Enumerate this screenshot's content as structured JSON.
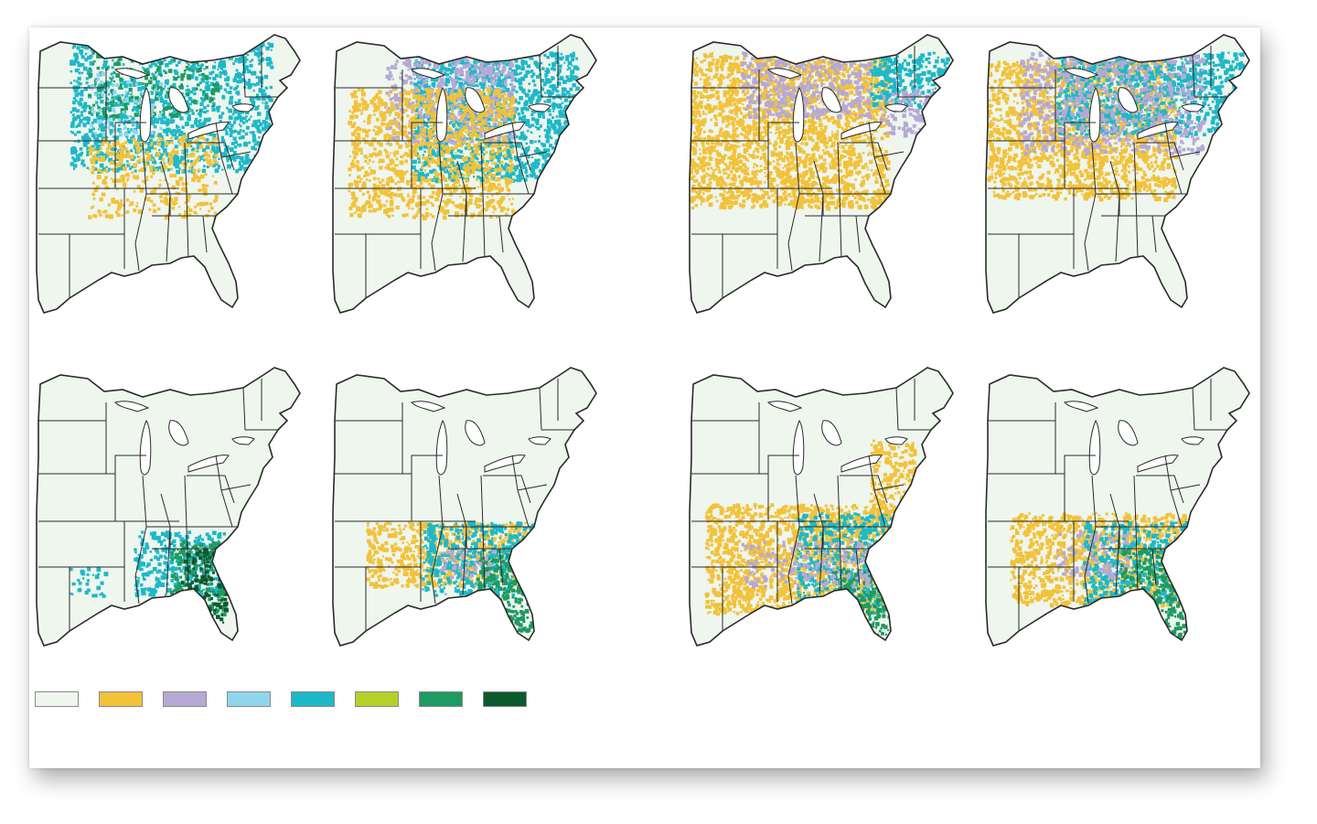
{
  "figure": {
    "background": "#ffffff",
    "map_background": "#eef6ee",
    "border_color": "#2a2a2a",
    "panels": [
      {
        "id": "top-left",
        "group": "left",
        "pattern": "north-sparse"
      },
      {
        "id": "top-mid-left",
        "group": "left",
        "pattern": "north-dense"
      },
      {
        "id": "bottom-left",
        "group": "left",
        "pattern": "north-yellow"
      },
      {
        "id": "bottom-mid-left",
        "group": "left",
        "pattern": "north-yellow-teal"
      },
      {
        "id": "top-mid-right",
        "group": "right",
        "pattern": "south-small"
      },
      {
        "id": "top-right",
        "group": "right",
        "pattern": "south-medium"
      },
      {
        "id": "bottom-mid-right",
        "group": "right",
        "pattern": "south-large"
      },
      {
        "id": "bottom-right",
        "group": "right",
        "pattern": "south-medium-large"
      }
    ],
    "legend": [
      {
        "color": "#eef6ee"
      },
      {
        "color": "#f2c23a"
      },
      {
        "color": "#b6a9d6"
      },
      {
        "color": "#8fd6ec"
      },
      {
        "color": "#1fb8c8"
      },
      {
        "color": "#b7cf2a"
      },
      {
        "color": "#1f9a62"
      },
      {
        "color": "#0b5a2e"
      }
    ]
  }
}
